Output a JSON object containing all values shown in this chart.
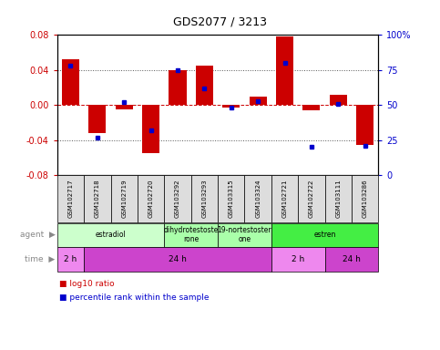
{
  "title": "GDS2077 / 3213",
  "samples": [
    "GSM102717",
    "GSM102718",
    "GSM102719",
    "GSM102720",
    "GSM103292",
    "GSM103293",
    "GSM103315",
    "GSM103324",
    "GSM102721",
    "GSM102722",
    "GSM103111",
    "GSM103286"
  ],
  "log10_ratio": [
    0.052,
    -0.032,
    -0.005,
    -0.055,
    0.04,
    0.045,
    -0.003,
    0.01,
    0.078,
    -0.006,
    0.012,
    -0.046
  ],
  "percentile": [
    0.78,
    0.27,
    0.52,
    0.32,
    0.75,
    0.62,
    0.48,
    0.53,
    0.8,
    0.2,
    0.51,
    0.21
  ],
  "ylim": [
    -0.08,
    0.08
  ],
  "yticks": [
    -0.08,
    -0.04,
    0.0,
    0.04,
    0.08
  ],
  "y2ticks": [
    0,
    25,
    50,
    75,
    100
  ],
  "agent_groups": [
    {
      "label": "estradiol",
      "start": 0,
      "end": 4,
      "color": "#ccffcc"
    },
    {
      "label": "dihydrotestoste\nrone",
      "start": 4,
      "end": 6,
      "color": "#aaffaa"
    },
    {
      "label": "19-nortestoster\none",
      "start": 6,
      "end": 8,
      "color": "#aaffaa"
    },
    {
      "label": "estren",
      "start": 8,
      "end": 12,
      "color": "#44ee44"
    }
  ],
  "time_groups": [
    {
      "label": "2 h",
      "start": 0,
      "end": 1,
      "color": "#ee88ee"
    },
    {
      "label": "24 h",
      "start": 1,
      "end": 8,
      "color": "#cc44cc"
    },
    {
      "label": "2 h",
      "start": 8,
      "end": 10,
      "color": "#ee88ee"
    },
    {
      "label": "24 h",
      "start": 10,
      "end": 12,
      "color": "#cc44cc"
    }
  ],
  "bar_color": "#cc0000",
  "dot_color": "#0000cc",
  "tick_color_left": "#cc0000",
  "tick_color_right": "#0000cc",
  "background_color": "#ffffff"
}
